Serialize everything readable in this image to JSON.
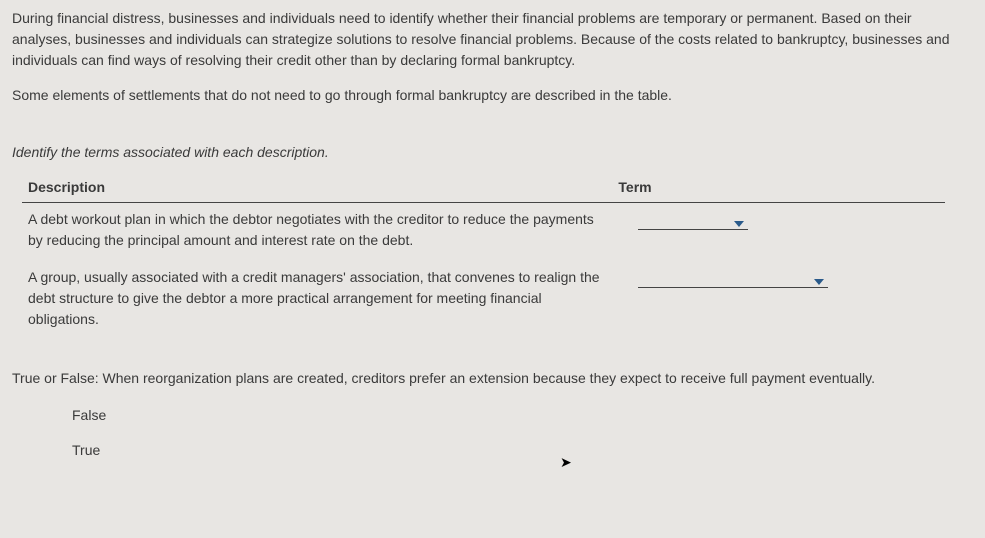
{
  "intro": {
    "para1": "During financial distress, businesses and individuals need to identify whether their financial problems are temporary or permanent. Based on their analyses, businesses and individuals can strategize solutions to resolve financial problems. Because of the costs related to bankruptcy, businesses and individuals can find ways of resolving their credit other than by declaring formal bankruptcy.",
    "para2": "Some elements of settlements that do not need to go through formal bankruptcy are described in the table."
  },
  "instruction": "Identify the terms associated with each description.",
  "table": {
    "headers": {
      "description": "Description",
      "term": "Term"
    },
    "rows": [
      {
        "description": "A debt workout plan in which the debtor negotiates with the creditor to reduce the payments by reducing the principal amount and interest rate on the debt.",
        "selected": ""
      },
      {
        "description": "A group, usually associated with a credit managers' association, that convenes to realign the debt structure to give the debtor a more practical arrangement for meeting financial obligations.",
        "selected": ""
      }
    ]
  },
  "true_false": {
    "prompt": "True or False: When reorganization plans are created, creditors prefer an extension because they expect to receive full payment eventually.",
    "options": {
      "false": "False",
      "true": "True"
    }
  }
}
